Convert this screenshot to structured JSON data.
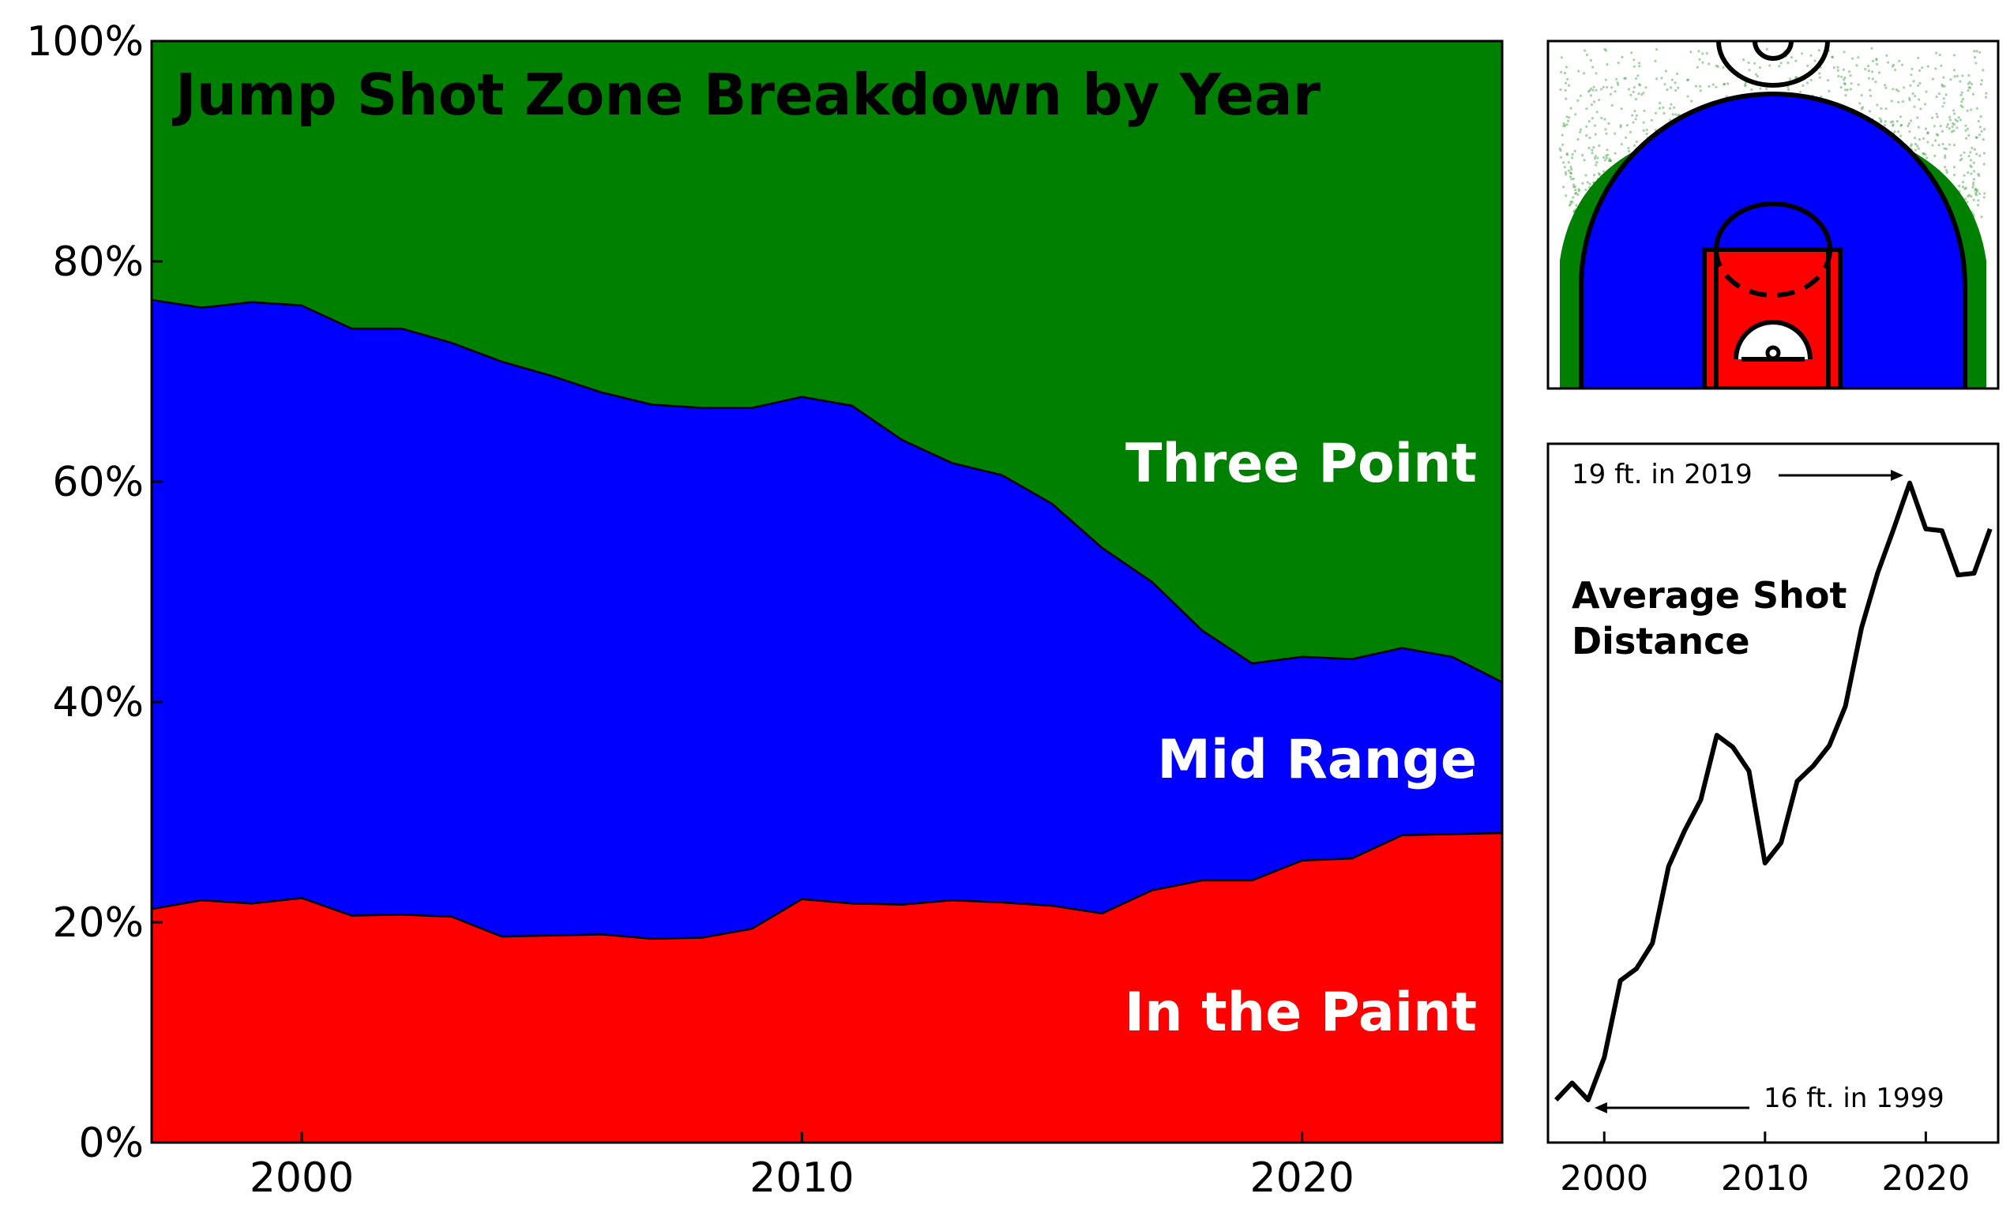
{
  "colors": {
    "paint": "#ff0000",
    "mid": "#0000ff",
    "three": "#008000",
    "line": "#000000"
  },
  "chart_data": [
    {
      "type": "area",
      "stacked": true,
      "title": "Jump Shot Zone Breakdown by Year",
      "xlim": [
        1997,
        2024
      ],
      "ylim": [
        0,
        100
      ],
      "x_ticks": [
        2000,
        2010,
        2020
      ],
      "y_ticks": [
        0,
        20,
        40,
        60,
        80,
        100
      ],
      "y_tick_labels": [
        "0%",
        "20%",
        "40%",
        "60%",
        "80%",
        "100%"
      ],
      "x": [
        1997,
        1998,
        1999,
        2000,
        2001,
        2002,
        2003,
        2004,
        2005,
        2006,
        2007,
        2008,
        2009,
        2010,
        2011,
        2012,
        2013,
        2014,
        2015,
        2016,
        2017,
        2018,
        2019,
        2020,
        2021,
        2022,
        2023,
        2024
      ],
      "series": [
        {
          "name": "In the Paint",
          "values": [
            21.2,
            22.0,
            21.7,
            22.2,
            20.6,
            20.7,
            20.5,
            18.7,
            18.8,
            18.9,
            18.5,
            18.6,
            19.4,
            22.1,
            21.7,
            21.6,
            22.0,
            21.8,
            21.5,
            20.8,
            22.9,
            23.8,
            23.8,
            25.6,
            25.8,
            27.9,
            28.0,
            28.1
          ]
        },
        {
          "name": "Mid Range",
          "values": [
            55.3,
            53.8,
            54.6,
            53.8,
            53.3,
            53.2,
            52.1,
            52.2,
            50.8,
            49.2,
            48.5,
            48.1,
            47.3,
            45.6,
            45.2,
            42.2,
            39.7,
            38.8,
            36.5,
            33.2,
            28.0,
            22.7,
            19.7,
            18.5,
            18.1,
            17.0,
            16.1,
            13.7
          ]
        },
        {
          "name": "Three Point",
          "values": [
            23.5,
            24.2,
            23.7,
            24.0,
            26.1,
            26.1,
            27.4,
            29.1,
            30.4,
            31.9,
            33.0,
            33.3,
            33.3,
            32.3,
            33.1,
            36.2,
            38.3,
            39.4,
            42.0,
            46.0,
            49.1,
            53.5,
            56.5,
            55.9,
            56.1,
            55.1,
            55.9,
            58.2
          ]
        }
      ]
    },
    {
      "type": "line",
      "title": "Average Shot Distance",
      "xlim": [
        1996.5,
        2024.5
      ],
      "x_ticks": [
        2000,
        2010,
        2020
      ],
      "x": [
        1997,
        1998,
        1999,
        2000,
        2001,
        2002,
        2003,
        2004,
        2005,
        2006,
        2007,
        2008,
        2009,
        2010,
        2011,
        2012,
        2013,
        2014,
        2015,
        2016,
        2017,
        2018,
        2019,
        2020,
        2021,
        2022,
        2023,
        2024
      ],
      "series": [
        {
          "values": [
            15.85,
            15.95,
            15.85,
            16.1,
            16.55,
            16.62,
            16.77,
            17.22,
            17.43,
            17.61,
            17.99,
            17.92,
            17.78,
            17.24,
            17.36,
            17.72,
            17.81,
            17.93,
            18.16,
            18.62,
            18.94,
            19.2,
            19.47,
            19.2,
            19.19,
            18.93,
            18.94,
            19.2
          ]
        }
      ],
      "annotations": [
        {
          "text": "19 ft. in 2019",
          "x": 2019,
          "y": 19.47
        },
        {
          "text": "16 ft. in 1999",
          "x": 1999,
          "y": 15.85
        }
      ]
    }
  ],
  "court": {
    "zones": [
      "three-point",
      "mid-range",
      "paint",
      "restricted-area"
    ]
  }
}
